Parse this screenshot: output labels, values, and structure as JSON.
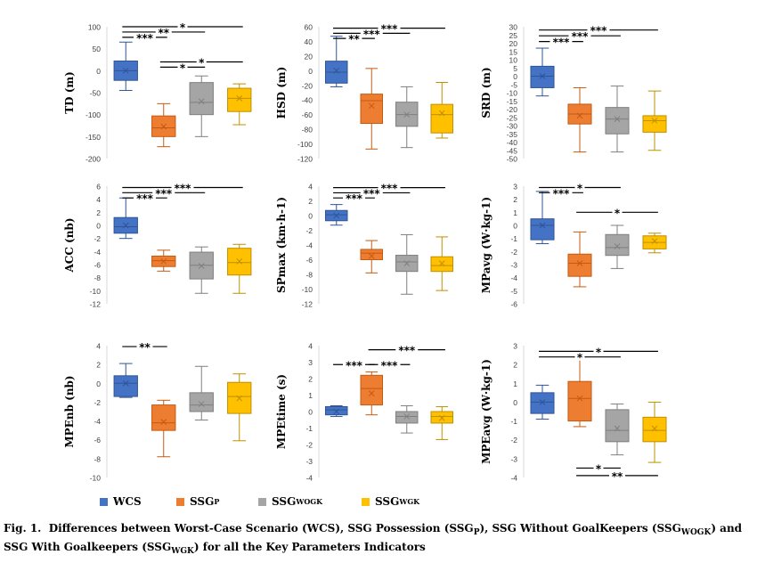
{
  "colors": {
    "WCS": "#4472C4",
    "SSGp": "#ED7D31",
    "SSGWOGK": "#A5A5A5",
    "SSGWGK": "#FFC000"
  },
  "legend": [
    {
      "key": "WCS",
      "label": "WCS",
      "sub": ""
    },
    {
      "key": "SSGp",
      "label": "SSG",
      "sub": "P"
    },
    {
      "key": "SSGWOGK",
      "label": "SSG",
      "sub": "WOGK"
    },
    {
      "key": "SSGWGK",
      "label": "SSG",
      "sub": "WGK"
    }
  ],
  "caption": {
    "fig_label": "Fig. 1.",
    "p1": "Differences between Worst-Case Scenario (WCS), SSG Possession (SSG",
    "s1": "P",
    "p2": "), SSG Without GoalKeepers (SSG",
    "s2": "WOGK",
    "p3": ") and SSG With Goalkeepers (SSG",
    "s3": "WGK",
    "p4": ") for all the Key Parameters Indicators"
  },
  "chart_data": [
    {
      "type": "boxplot",
      "ylabel": "TD (m)",
      "ylim": [
        -200,
        100
      ],
      "ticks": [
        100,
        50,
        0,
        -50,
        -100,
        -150,
        -200
      ],
      "tick_labels": [
        "100",
        "50",
        "0",
        "-50",
        "-100",
        "-150",
        "-200"
      ],
      "series": [
        {
          "name": "WCS",
          "min": -45,
          "q1": -22,
          "median": 0,
          "q3": 22,
          "max": 65,
          "mean": 0
        },
        {
          "name": "SSGp",
          "min": -173,
          "q1": -150,
          "median": -130,
          "q3": -103,
          "max": -75,
          "mean": -127
        },
        {
          "name": "SSGWOGK",
          "min": -150,
          "q1": -100,
          "median": -72,
          "q3": -27,
          "max": -12,
          "mean": -70
        },
        {
          "name": "SSGWGK",
          "min": -123,
          "q1": -93,
          "median": -63,
          "q3": -40,
          "max": -30,
          "mean": -63
        }
      ],
      "brackets": [
        {
          "from": 1,
          "to": 4,
          "y": 100,
          "label": "*"
        },
        {
          "from": 1,
          "to": 3,
          "y": 88,
          "label": "**"
        },
        {
          "from": 1,
          "to": 2,
          "y": 76,
          "label": "***"
        },
        {
          "from": 2,
          "to": 4,
          "y": 20,
          "label": "*"
        },
        {
          "from": 2,
          "to": 3,
          "y": 8,
          "label": "*"
        }
      ]
    },
    {
      "type": "boxplot",
      "ylabel": "HSD (m)",
      "ylim": [
        -120,
        60
      ],
      "ticks": [
        60,
        40,
        20,
        0,
        -20,
        -40,
        -60,
        -80,
        -100,
        -120
      ],
      "tick_labels": [
        "60",
        "40",
        "20",
        "0",
        "-20",
        "-40",
        "-60",
        "-80",
        "-100",
        "-120"
      ],
      "series": [
        {
          "name": "WCS",
          "min": -22,
          "q1": -17,
          "median": -2,
          "q3": 13,
          "max": 47,
          "mean": 0
        },
        {
          "name": "SSGp",
          "min": -107,
          "q1": -72,
          "median": -41,
          "q3": -32,
          "max": 3,
          "mean": -48
        },
        {
          "name": "SSGWOGK",
          "min": -105,
          "q1": -76,
          "median": -60,
          "q3": -43,
          "max": -22,
          "mean": -60
        },
        {
          "name": "SSGWGK",
          "min": -92,
          "q1": -85,
          "median": -60,
          "q3": -46,
          "max": -16,
          "mean": -58
        }
      ],
      "brackets": [
        {
          "from": 1,
          "to": 4,
          "y": 58,
          "label": "***"
        },
        {
          "from": 1,
          "to": 3,
          "y": 51,
          "label": "***"
        },
        {
          "from": 1,
          "to": 2,
          "y": 44,
          "label": "**"
        }
      ]
    },
    {
      "type": "boxplot",
      "ylabel": "SRD (m)",
      "ylim": [
        -50,
        30
      ],
      "ticks": [
        30,
        25,
        20,
        15,
        10,
        5,
        0,
        -5,
        -10,
        -15,
        -20,
        -25,
        -30,
        -35,
        -40,
        -45,
        -50
      ],
      "tick_labels": [
        "30",
        "25",
        "20",
        "15",
        "10",
        "5",
        "0",
        "-5",
        "-10",
        "-15",
        "-20",
        "-25",
        "-30",
        "-35",
        "-40",
        "-45",
        "-50"
      ],
      "series": [
        {
          "name": "WCS",
          "min": -12,
          "q1": -7,
          "median": 0,
          "q3": 6,
          "max": 17,
          "mean": 0
        },
        {
          "name": "SSGp",
          "min": -46,
          "q1": -29,
          "median": -23,
          "q3": -17,
          "max": -7,
          "mean": -24
        },
        {
          "name": "SSGWOGK",
          "min": -46,
          "q1": -35,
          "median": -26,
          "q3": -19,
          "max": -6,
          "mean": -26
        },
        {
          "name": "SSGWGK",
          "min": -45,
          "q1": -34,
          "median": -27,
          "q3": -24,
          "max": -9,
          "mean": -27
        }
      ],
      "brackets": [
        {
          "from": 1,
          "to": 4,
          "y": 28,
          "label": "***"
        },
        {
          "from": 1,
          "to": 3,
          "y": 24.5,
          "label": "***"
        },
        {
          "from": 1,
          "to": 2,
          "y": 21,
          "label": "***"
        }
      ]
    },
    {
      "type": "boxplot",
      "ylabel": "ACC (nb)",
      "ylim": [
        -12,
        6
      ],
      "ticks": [
        6,
        4,
        2,
        0,
        -2,
        -4,
        -6,
        -8,
        -10,
        -12
      ],
      "tick_labels": [
        "6",
        "4",
        "2",
        "0",
        "-2",
        "-4",
        "-6",
        "-8",
        "-10",
        "-12"
      ],
      "series": [
        {
          "name": "WCS",
          "min": -2,
          "q1": -1.2,
          "median": -0.2,
          "q3": 1.2,
          "max": 4.2,
          "mean": 0
        },
        {
          "name": "SSGp",
          "min": -7,
          "q1": -6.3,
          "median": -5.4,
          "q3": -4.7,
          "max": -3.8,
          "mean": -5.5
        },
        {
          "name": "SSGWOGK",
          "min": -10.4,
          "q1": -8.2,
          "median": -6.1,
          "q3": -4.1,
          "max": -3.3,
          "mean": -6.2
        },
        {
          "name": "SSGWGK",
          "min": -10.4,
          "q1": -7.6,
          "median": -5.7,
          "q3": -3.5,
          "max": -2.9,
          "mean": -5.5
        }
      ],
      "brackets": [
        {
          "from": 1,
          "to": 4,
          "y": 5.8,
          "label": "***"
        },
        {
          "from": 1,
          "to": 3,
          "y": 5,
          "label": "***"
        },
        {
          "from": 1,
          "to": 2,
          "y": 4.2,
          "label": "***"
        }
      ]
    },
    {
      "type": "boxplot",
      "ylabel": "SPmax (km·h-1)",
      "ylim": [
        -12,
        4
      ],
      "ticks": [
        4,
        2,
        0,
        -2,
        -4,
        -6,
        -8,
        -10,
        -12
      ],
      "tick_labels": [
        "4",
        "2",
        "0",
        "-2",
        "-4",
        "-6",
        "-8",
        "-10",
        "-12"
      ],
      "series": [
        {
          "name": "WCS",
          "min": -1.3,
          "q1": -0.7,
          "median": 0.1,
          "q3": 0.7,
          "max": 1.5,
          "mean": 0
        },
        {
          "name": "SSGp",
          "min": -7.8,
          "q1": -6,
          "median": -5.1,
          "q3": -4.6,
          "max": -3.4,
          "mean": -5.5
        },
        {
          "name": "SSGWOGK",
          "min": -10.7,
          "q1": -7.6,
          "median": -6.3,
          "q3": -5.4,
          "max": -2.6,
          "mean": -6.5
        },
        {
          "name": "SSGWGK",
          "min": -10.2,
          "q1": -7.6,
          "median": -6.8,
          "q3": -5.6,
          "max": -2.9,
          "mean": -6.5
        }
      ],
      "brackets": [
        {
          "from": 1,
          "to": 4,
          "y": 3.8,
          "label": "***"
        },
        {
          "from": 1,
          "to": 3,
          "y": 3.1,
          "label": "***"
        },
        {
          "from": 1,
          "to": 2,
          "y": 2.4,
          "label": "***"
        }
      ]
    },
    {
      "type": "boxplot",
      "ylabel": "MPavg (W·kg-1)",
      "ylim": [
        -6,
        3
      ],
      "ticks": [
        3,
        2,
        1,
        0,
        -1,
        -2,
        -3,
        -4,
        -5,
        -6
      ],
      "tick_labels": [
        "3",
        "2",
        "1",
        "0",
        "-1",
        "-2",
        "-3",
        "-4",
        "-5",
        "-6"
      ],
      "series": [
        {
          "name": "WCS",
          "min": -1.4,
          "q1": -1.1,
          "median": 0,
          "q3": 0.5,
          "max": 2.6,
          "mean": 0
        },
        {
          "name": "SSGp",
          "min": -4.7,
          "q1": -3.9,
          "median": -2.9,
          "q3": -2.2,
          "max": -0.5,
          "mean": -2.9
        },
        {
          "name": "SSGWOGK",
          "min": -3.3,
          "q1": -2.3,
          "median": -1.7,
          "q3": -0.7,
          "max": 0,
          "mean": -1.6
        },
        {
          "name": "SSGWGK",
          "min": -2.1,
          "q1": -1.8,
          "median": -1.3,
          "q3": -0.8,
          "max": -0.6,
          "mean": -1.2
        }
      ],
      "brackets": [
        {
          "from": 1,
          "to": 3,
          "y": 2.9,
          "label": "*"
        },
        {
          "from": 1,
          "to": 2,
          "y": 2.5,
          "label": "***"
        },
        {
          "from": 2,
          "to": 4,
          "y": 1,
          "label": "*"
        }
      ]
    },
    {
      "type": "boxplot",
      "ylabel": "MPEnb (nb)",
      "ylim": [
        -10,
        4
      ],
      "ticks": [
        4,
        2,
        0,
        -2,
        -4,
        -6,
        -8,
        -10
      ],
      "tick_labels": [
        "4",
        "2",
        "0",
        "-2",
        "-4",
        "-6",
        "-8",
        "-10"
      ],
      "series": [
        {
          "name": "WCS",
          "min": -1.5,
          "q1": -1.4,
          "median": 0,
          "q3": 0.8,
          "max": 2.1,
          "mean": 0
        },
        {
          "name": "SSGp",
          "min": -7.8,
          "q1": -5,
          "median": -4.2,
          "q3": -2.3,
          "max": -1.8,
          "mean": -4.1
        },
        {
          "name": "SSGWOGK",
          "min": -3.9,
          "q1": -3,
          "median": -2.3,
          "q3": -1,
          "max": 1.8,
          "mean": -2.2
        },
        {
          "name": "SSGWGK",
          "min": -6.1,
          "q1": -3.2,
          "median": -1.4,
          "q3": 0.1,
          "max": 1,
          "mean": -1.6
        }
      ],
      "brackets": [
        {
          "from": 1,
          "to": 2,
          "y": 3.9,
          "label": "**"
        }
      ]
    },
    {
      "type": "boxplot",
      "ylabel": "MPEtime (s)",
      "ylim": [
        -4,
        4
      ],
      "ticks": [
        4,
        3,
        2,
        1,
        0,
        -1,
        -2,
        -3,
        -4
      ],
      "tick_labels": [
        "4",
        "3",
        "2",
        "1",
        "0",
        "-1",
        "-2",
        "-3",
        "-4"
      ],
      "series": [
        {
          "name": "WCS",
          "min": -0.3,
          "q1": -0.2,
          "median": 0.1,
          "q3": 0.3,
          "max": 0.35,
          "mean": 0
        },
        {
          "name": "SSGp",
          "min": -0.2,
          "q1": 0.4,
          "median": 1.4,
          "q3": 2.2,
          "max": 2.4,
          "mean": 1.1
        },
        {
          "name": "SSGWOGK",
          "min": -1.3,
          "q1": -0.7,
          "median": -0.3,
          "q3": 0,
          "max": 0.35,
          "mean": -0.3
        },
        {
          "name": "SSGWGK",
          "min": -1.7,
          "q1": -0.7,
          "median": -0.3,
          "q3": 0,
          "max": 0.3,
          "mean": -0.4
        }
      ],
      "brackets": [
        {
          "from": 2,
          "to": 4,
          "y": 3.75,
          "label": "***"
        },
        {
          "from": 1,
          "to": 2,
          "y": 2.85,
          "label": "***"
        },
        {
          "from": 2,
          "to": 3,
          "y": 2.85,
          "label": "***"
        }
      ]
    },
    {
      "type": "boxplot",
      "ylabel": "MPEavg (W·kg-1)",
      "ylim": [
        -4,
        3
      ],
      "ticks": [
        3,
        2,
        1,
        0,
        -1,
        -2,
        -3,
        -4
      ],
      "tick_labels": [
        "3",
        "2",
        "1",
        "0",
        "-1",
        "-2",
        "-3",
        "-4"
      ],
      "series": [
        {
          "name": "WCS",
          "min": -0.9,
          "q1": -0.6,
          "median": 0,
          "q3": 0.5,
          "max": 0.9,
          "mean": 0
        },
        {
          "name": "SSGp",
          "min": -1.3,
          "q1": -1,
          "median": 0.2,
          "q3": 1.1,
          "max": 2.4,
          "mean": 0.2
        },
        {
          "name": "SSGWOGK",
          "min": -2.8,
          "q1": -2.1,
          "median": -1.5,
          "q3": -0.4,
          "max": -0.1,
          "mean": -1.4
        },
        {
          "name": "SSGWGK",
          "min": -3.2,
          "q1": -2.1,
          "median": -1.5,
          "q3": -0.8,
          "max": 0,
          "mean": -1.4
        }
      ],
      "brackets": [
        {
          "from": 1,
          "to": 4,
          "y": 2.7,
          "label": "*"
        },
        {
          "from": 1,
          "to": 3,
          "y": 2.4,
          "label": "*"
        },
        {
          "from": 2,
          "to": 3,
          "y": -3.5,
          "label": "*"
        },
        {
          "from": 2,
          "to": 4,
          "y": -3.9,
          "label": "**"
        }
      ]
    }
  ]
}
